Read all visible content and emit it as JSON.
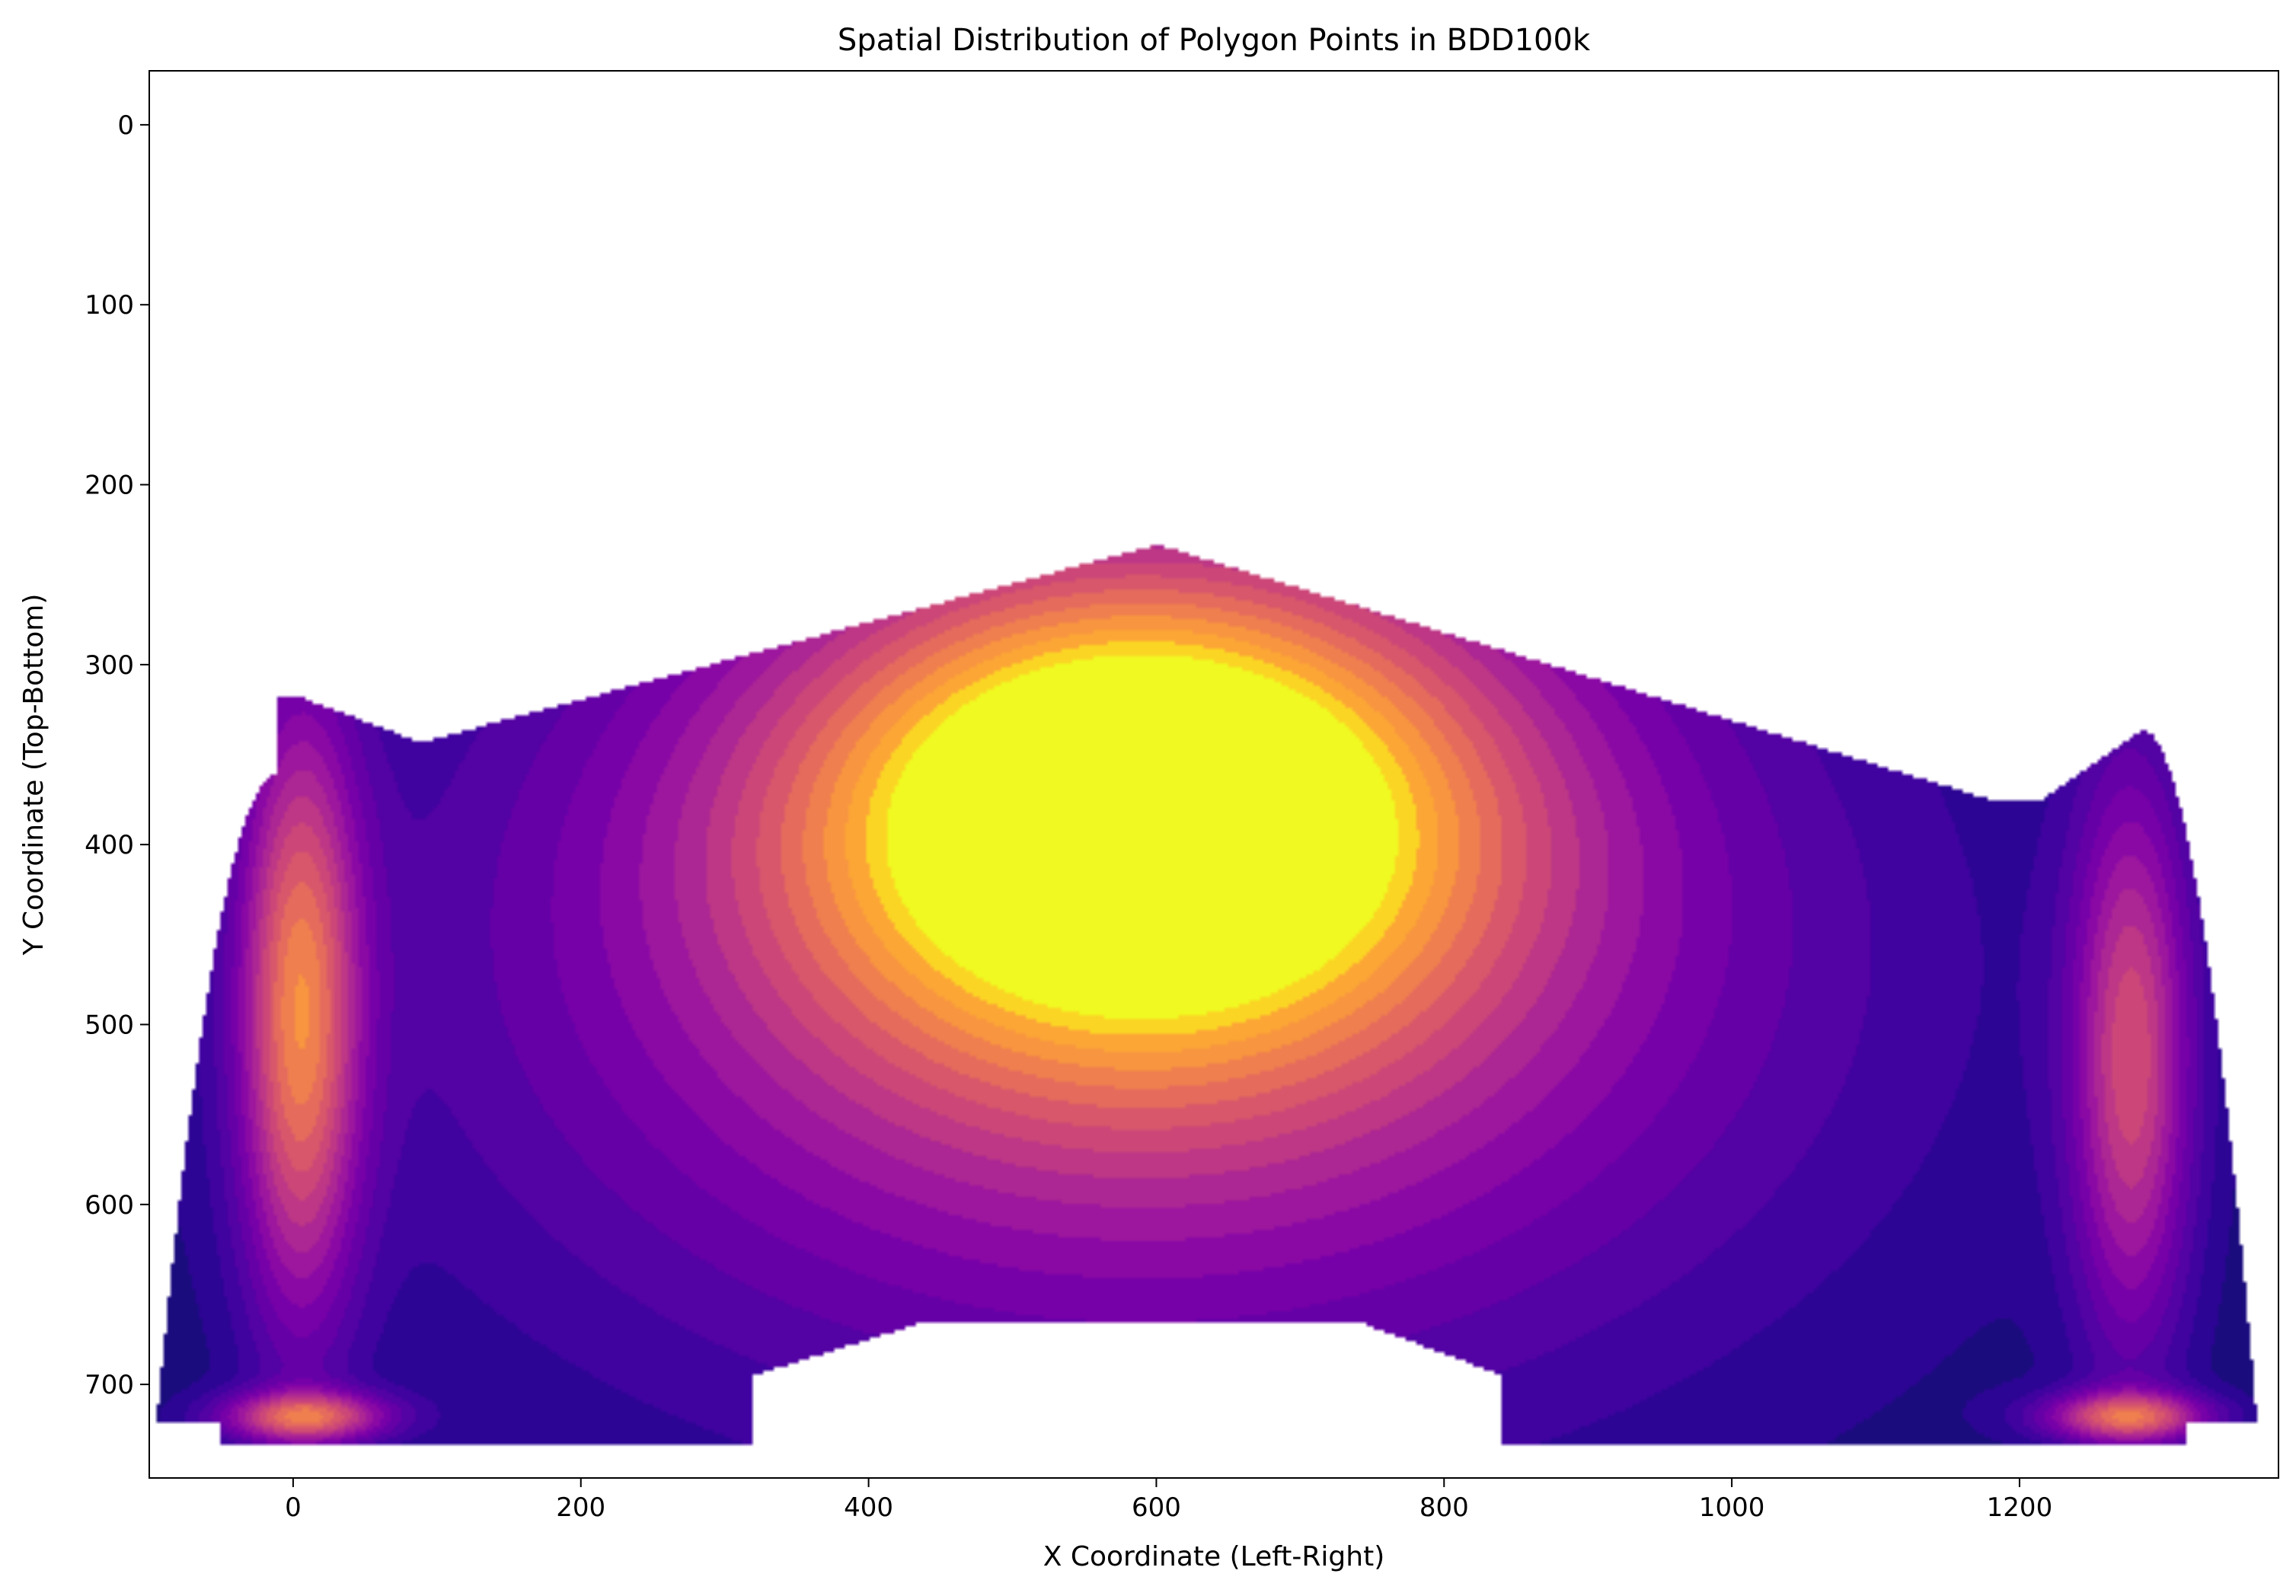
{
  "chart_data": {
    "type": "heatmap",
    "style": "filled density contours (KDE)",
    "title": "Spatial Distribution of Polygon Points in BDD100k",
    "xlabel": "X Coordinate (Left-Right)",
    "ylabel": "Y Coordinate (Top-Bottom)",
    "xlim": [
      -100,
      1380
    ],
    "ylim": [
      752,
      -30
    ],
    "y_axis_inverted": true,
    "x_ticks": [
      0,
      200,
      400,
      600,
      800,
      1000,
      1200
    ],
    "y_ticks": [
      0,
      100,
      200,
      300,
      400,
      500,
      600,
      700
    ],
    "grid": false,
    "legend": "none",
    "colormap": "plasma",
    "level_colors": [
      "#1b0c7e",
      "#2d0594",
      "#4003a0",
      "#5302a3",
      "#6500a7",
      "#7701a8",
      "#8a09a5",
      "#9c179e",
      "#ac2694",
      "#bd3786",
      "#cc4778",
      "#d8576b",
      "#e56b5d",
      "#ef7f4f",
      "#f89540",
      "#fca636",
      "#fbd524",
      "#f0f921"
    ],
    "hotspots": [
      {
        "name": "central peak",
        "x": 590,
        "y": 378,
        "peak_level": 17
      },
      {
        "name": "left edge band",
        "x": 5,
        "y": 495,
        "peak_level": 13
      },
      {
        "name": "right edge band",
        "x": 1278,
        "y": 520,
        "peak_level": 11
      },
      {
        "name": "bottom-left corner",
        "x": 8,
        "y": 718,
        "peak_level": 11
      },
      {
        "name": "bottom-right corner",
        "x": 1275,
        "y": 718,
        "peak_level": 11
      }
    ]
  }
}
